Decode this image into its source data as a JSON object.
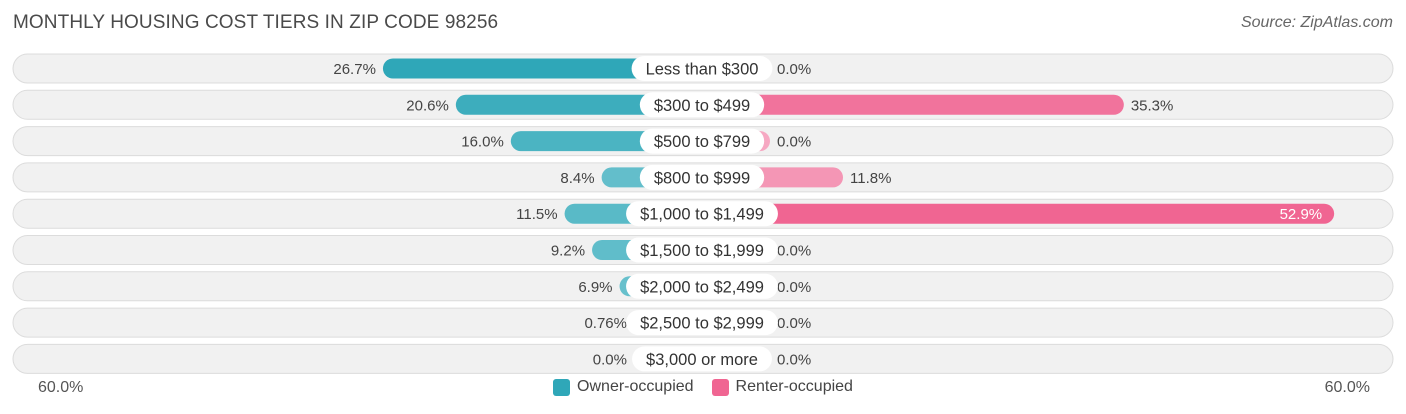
{
  "header": {
    "title": "MONTHLY HOUSING COST TIERS IN ZIP CODE 98256",
    "source": "Source: ZipAtlas.com"
  },
  "axis": {
    "left_label": "60.0%",
    "right_label": "60.0%"
  },
  "legend": {
    "owner_label": "Owner-occupied",
    "renter_label": "Renter-occupied"
  },
  "colors": {
    "owner_dark": "#2fa7b8",
    "owner_light": "#7dcad4",
    "renter_dark": "#f06592",
    "renter_light": "#f6a8c2",
    "row_bg": "#f1f1f1",
    "row_border": "#dcdcdc"
  },
  "chart_data": {
    "type": "bar",
    "orientation": "horizontal-diverging",
    "title": "MONTHLY HOUSING COST TIERS IN ZIP CODE 98256",
    "xlim": [
      -60,
      60
    ],
    "categories": [
      "Less than $300",
      "$300 to $499",
      "$500 to $799",
      "$800 to $999",
      "$1,000 to $1,499",
      "$1,500 to $1,999",
      "$2,000 to $2,499",
      "$2,500 to $2,999",
      "$3,000 or more"
    ],
    "series": [
      {
        "name": "Owner-occupied",
        "values": [
          26.7,
          20.6,
          16.0,
          8.4,
          11.5,
          9.2,
          6.9,
          0.76,
          0.0
        ],
        "labels": [
          "26.7%",
          "20.6%",
          "16.0%",
          "8.4%",
          "11.5%",
          "9.2%",
          "6.9%",
          "0.76%",
          "0.0%"
        ]
      },
      {
        "name": "Renter-occupied",
        "values": [
          0.0,
          35.3,
          0.0,
          11.8,
          52.9,
          0.0,
          0.0,
          0.0,
          0.0
        ],
        "labels": [
          "0.0%",
          "35.3%",
          "0.0%",
          "11.8%",
          "52.9%",
          "0.0%",
          "0.0%",
          "0.0%",
          "0.0%"
        ]
      }
    ],
    "legend_position": "bottom-center"
  }
}
